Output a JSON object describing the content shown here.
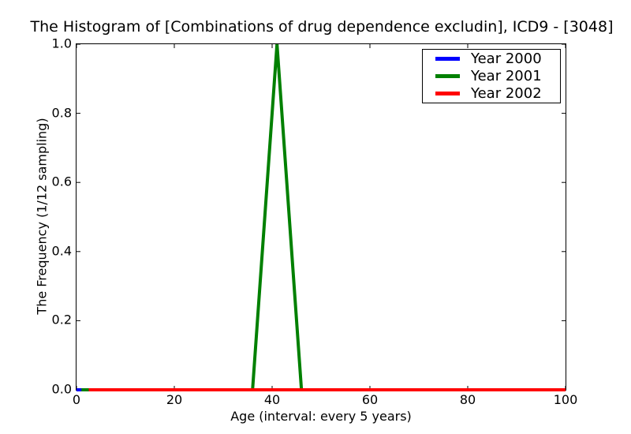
{
  "figure": {
    "background": "#ffffff",
    "frame_color": "#000000"
  },
  "chart_data": {
    "type": "line",
    "title": "The Histogram of [Combinations of drug dependence excludin], ICD9 - [3048]",
    "xlabel": "Age (interval: every 5 years)",
    "ylabel": "The Frequency (1/12 sampling)",
    "xlim": [
      0,
      100
    ],
    "ylim": [
      0.0,
      1.0
    ],
    "xticks": [
      0,
      20,
      40,
      60,
      80,
      100
    ],
    "xtick_labels": [
      "0",
      "20",
      "40",
      "60",
      "80",
      "100"
    ],
    "yticks": [
      0.0,
      0.2,
      0.4,
      0.6,
      0.8,
      1.0
    ],
    "ytick_labels": [
      "0.0",
      "0.2",
      "0.4",
      "0.6",
      "0.8",
      "1.0"
    ],
    "grid": false,
    "legend_position": "upper right",
    "line_width": 4,
    "series": [
      {
        "name": "Year 2000",
        "color": "#0000ff",
        "x": [
          0,
          100
        ],
        "y": [
          0,
          0
        ]
      },
      {
        "name": "Year 2001",
        "color": "#008000",
        "x": [
          1,
          36,
          41,
          46,
          100
        ],
        "y": [
          0,
          0,
          1.0,
          0,
          0
        ]
      },
      {
        "name": "Year 2002",
        "color": "#ff0000",
        "x": [
          2.5,
          100
        ],
        "y": [
          0,
          0
        ]
      }
    ]
  }
}
